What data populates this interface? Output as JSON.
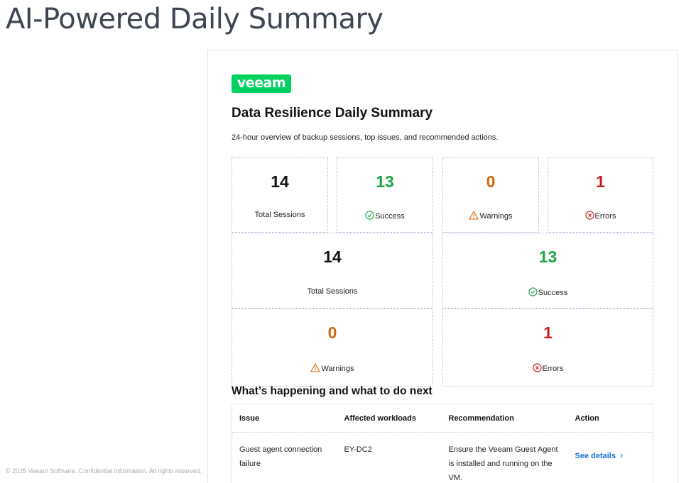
{
  "page": {
    "title": "AI-Powered Daily Summary",
    "footer": "© 2025 Veeam Software. Confidential information. All rights reserved."
  },
  "report": {
    "logo_text": "veeam",
    "title": "Data Resilience Daily Summary",
    "subtitle": "24-hour overview of backup sessions, top issues, and recommended actions."
  },
  "stats_row": [
    {
      "value": "14",
      "label": "Total Sessions",
      "icon": "none",
      "color": "#111111"
    },
    {
      "value": "13",
      "label": "Success",
      "icon": "check-circle-icon",
      "color": "#1ea446"
    },
    {
      "value": "0",
      "label": "Warnings",
      "icon": "warning-triangle-icon",
      "color": "#cc6a12"
    },
    {
      "value": "1",
      "label": "Errors",
      "icon": "error-circle-icon",
      "color": "#c81e1e"
    }
  ],
  "stats_grid": [
    {
      "value": "14",
      "label": "Total Sessions"
    },
    {
      "value": "13",
      "label": "Success"
    },
    {
      "value": "0",
      "label": "Warnings"
    },
    {
      "value": "1",
      "label": "Errors"
    }
  ],
  "issues": {
    "section_title": "What’s happening and what to do next",
    "headers": [
      "Issue",
      "Affected workloads",
      "Recommendation",
      "Action"
    ],
    "rows": [
      {
        "issue": "Guest agent connection failure",
        "workloads": "EY-DC2",
        "recommendation": "Ensure the Veeam Guest Agent is installed and running on the VM.",
        "action": "See details"
      }
    ]
  },
  "colors": {
    "brand_green": "#00d15f",
    "success": "#1ea446",
    "warning": "#cc6a12",
    "error": "#c81e1e",
    "link": "#1570d9"
  }
}
